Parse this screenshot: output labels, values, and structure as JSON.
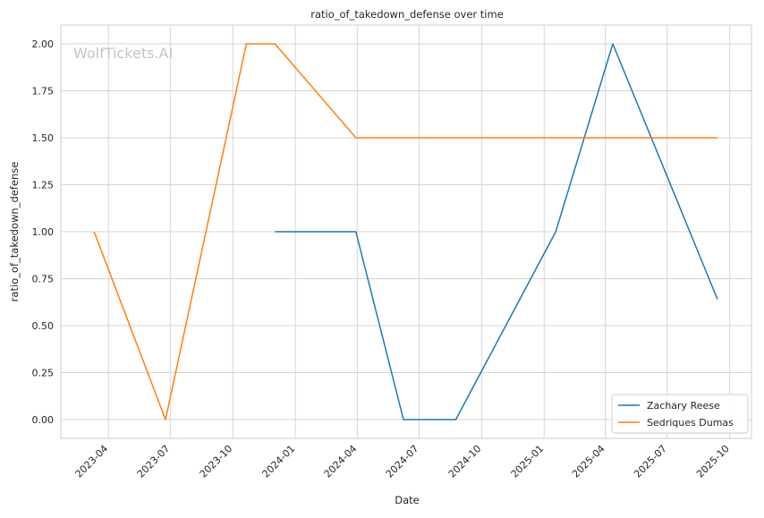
{
  "chart_data": {
    "type": "line",
    "title": "ratio_of_takedown_defense over time",
    "xlabel": "Date",
    "ylabel": "ratio_of_takedown_defense",
    "watermark": "WolfTickets.AI",
    "x_ticks": [
      "2023-04",
      "2023-07",
      "2023-10",
      "2024-01",
      "2024-04",
      "2024-07",
      "2024-10",
      "2025-01",
      "2025-04",
      "2025-07",
      "2025-10"
    ],
    "y_ticks": [
      "0.00",
      "0.25",
      "0.50",
      "0.75",
      "1.00",
      "1.25",
      "1.50",
      "1.75",
      "2.00"
    ],
    "xlim": [
      "2023-01-21",
      "2025-11-02"
    ],
    "ylim": [
      -0.1,
      2.1
    ],
    "grid": true,
    "legend": "lower-right",
    "series": [
      {
        "name": "Zachary Reese",
        "color": "#1f77b4",
        "points": [
          {
            "x": "2023-12-02",
            "y": 1.0
          },
          {
            "x": "2024-03-30",
            "y": 1.0
          },
          {
            "x": "2024-06-08",
            "y": 0.0
          },
          {
            "x": "2024-08-24",
            "y": 0.0
          },
          {
            "x": "2025-01-18",
            "y": 1.0
          },
          {
            "x": "2025-04-12",
            "y": 2.0
          },
          {
            "x": "2025-09-13",
            "y": 0.64
          }
        ]
      },
      {
        "name": "Sedriques Dumas",
        "color": "#ff7f0e",
        "points": [
          {
            "x": "2023-03-11",
            "y": 1.0
          },
          {
            "x": "2023-06-24",
            "y": 0.0
          },
          {
            "x": "2023-10-21",
            "y": 2.0
          },
          {
            "x": "2023-12-02",
            "y": 2.0
          },
          {
            "x": "2024-03-30",
            "y": 1.5
          },
          {
            "x": "2025-09-13",
            "y": 1.5
          }
        ]
      }
    ]
  }
}
